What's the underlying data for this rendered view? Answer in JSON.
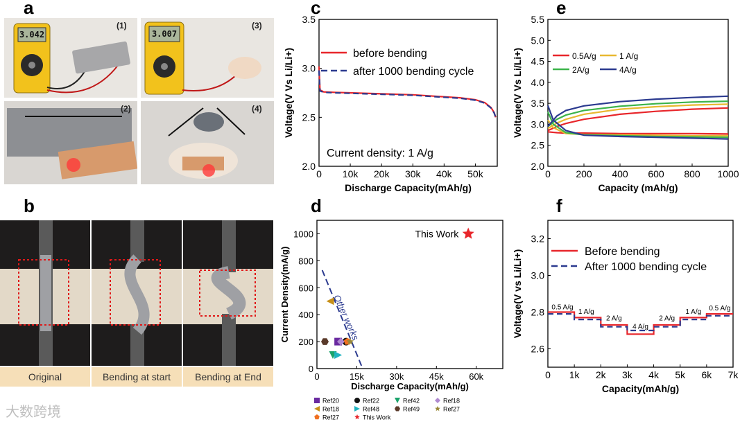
{
  "panels": {
    "a": "a",
    "b": "b",
    "c": "c",
    "d": "d",
    "e": "e",
    "f": "f"
  },
  "panel_a": {
    "sub_labels": [
      "(1)",
      "(2)",
      "(3)",
      "(4)"
    ],
    "meter_readings": [
      "3.042",
      "3.007"
    ]
  },
  "panel_b": {
    "captions": [
      "Original",
      "Bending at start",
      "Bending at End"
    ]
  },
  "watermark": "大数跨境",
  "chart_data": [
    {
      "id": "c",
      "type": "line",
      "xlabel": "Discharge Capacity(mAh/g)",
      "ylabel": "Voltage(V Vs Li/Li+)",
      "xlim": [
        0,
        57000
      ],
      "ylim": [
        2.0,
        3.5
      ],
      "xticks": [
        0,
        10000,
        20000,
        30000,
        40000,
        50000
      ],
      "xtick_labels": [
        "0",
        "10k",
        "20k",
        "30k",
        "40k",
        "50k"
      ],
      "yticks": [
        2.0,
        2.5,
        3.0,
        3.5
      ],
      "ytick_labels": [
        "2.0",
        "2.5",
        "3.0",
        "3.5"
      ],
      "legend": [
        "before bending",
        "after 1000 bending cycle"
      ],
      "annotation": "Current density: 1 A/g",
      "series": [
        {
          "name": "before bending",
          "color": "#e8262b",
          "dash": false,
          "x": [
            0,
            300,
            1500,
            5000,
            10000,
            20000,
            30000,
            40000,
            45000,
            50000,
            53000,
            55000,
            56000,
            56500
          ],
          "y": [
            3.02,
            2.78,
            2.76,
            2.755,
            2.75,
            2.74,
            2.73,
            2.71,
            2.7,
            2.68,
            2.65,
            2.6,
            2.55,
            2.5
          ]
        },
        {
          "name": "after 1000 bending cycle",
          "color": "#2b3a8f",
          "dash": true,
          "x": [
            0,
            300,
            1500,
            5000,
            10000,
            20000,
            30000,
            40000,
            45000,
            50000,
            53000,
            55000,
            56000,
            56500
          ],
          "y": [
            2.98,
            2.77,
            2.755,
            2.75,
            2.745,
            2.735,
            2.725,
            2.705,
            2.695,
            2.675,
            2.645,
            2.595,
            2.545,
            2.5
          ]
        }
      ]
    },
    {
      "id": "d",
      "type": "scatter",
      "xlabel": "Discharge Capacity(mAh/g)",
      "ylabel": "Current Density(mA/g)",
      "xlim": [
        0,
        70000
      ],
      "ylim": [
        0,
        1100
      ],
      "xticks": [
        0,
        15000,
        30000,
        45000,
        60000
      ],
      "xtick_labels": [
        "0",
        "15k",
        "30k",
        "45k",
        "60k"
      ],
      "yticks": [
        0,
        200,
        400,
        600,
        800,
        1000
      ],
      "ytick_labels": [
        "0",
        "200",
        "400",
        "600",
        "800",
        "1000"
      ],
      "annotation": "Other works",
      "highlight_label": "This Work",
      "points": [
        {
          "name": "Ref20",
          "x": 8000,
          "y": 200,
          "color": "#6a2aa0",
          "shape": "square"
        },
        {
          "name": "Ref22",
          "x": 11000,
          "y": 200,
          "color": "#111111",
          "shape": "circle"
        },
        {
          "name": "Ref42",
          "x": 6000,
          "y": 100,
          "color": "#1aa36b",
          "shape": "tri-down"
        },
        {
          "name": "Ref18",
          "x": 9000,
          "y": 200,
          "color": "#b08ad0",
          "shape": "diamond"
        },
        {
          "name": "Ref18",
          "x": 5000,
          "y": 500,
          "color": "#c79018",
          "shape": "tri-left"
        },
        {
          "name": "Ref48",
          "x": 8000,
          "y": 100,
          "color": "#1fb3c0",
          "shape": "tri-right"
        },
        {
          "name": "Ref49",
          "x": 3000,
          "y": 200,
          "color": "#5a3a2a",
          "shape": "hexagon"
        },
        {
          "name": "Ref27",
          "x": 11500,
          "y": 200,
          "color": "#f07020",
          "shape": "pentagon"
        },
        {
          "name": "Ref27",
          "x": 12500,
          "y": 200,
          "color": "#9a8a3a",
          "shape": "star"
        },
        {
          "name": "This Work",
          "x": 57000,
          "y": 1000,
          "color": "#e8262b",
          "shape": "star"
        }
      ],
      "legend_entries": [
        {
          "name": "Ref20",
          "color": "#6a2aa0",
          "shape": "square"
        },
        {
          "name": "Ref22",
          "color": "#111111",
          "shape": "circle"
        },
        {
          "name": "Ref42",
          "color": "#1aa36b",
          "shape": "tri-down"
        },
        {
          "name": "Ref18",
          "color": "#b08ad0",
          "shape": "diamond"
        },
        {
          "name": "Ref18",
          "color": "#c79018",
          "shape": "tri-left"
        },
        {
          "name": "Ref48",
          "color": "#1fb3c0",
          "shape": "tri-right"
        },
        {
          "name": "Ref49",
          "color": "#5a3a2a",
          "shape": "hexagon"
        },
        {
          "name": "Ref27",
          "color": "#9a8a3a",
          "shape": "star"
        },
        {
          "name": "Ref27",
          "color": "#f07020",
          "shape": "pentagon"
        },
        {
          "name": "This Work",
          "color": "#e8262b",
          "shape": "star"
        }
      ]
    },
    {
      "id": "e",
      "type": "line",
      "xlabel": "Capacity (mAh/g)",
      "ylabel": "Voltage(V Vs Li/Li+)",
      "xlim": [
        0,
        1000
      ],
      "ylim": [
        2.0,
        5.5
      ],
      "xticks": [
        0,
        200,
        400,
        600,
        800,
        1000
      ],
      "xtick_labels": [
        "0",
        "200",
        "400",
        "600",
        "800",
        "1000"
      ],
      "yticks": [
        2.0,
        2.5,
        3.0,
        3.5,
        4.0,
        4.5,
        5.0,
        5.5
      ],
      "ytick_labels": [
        "2.0",
        "2.5",
        "3.0",
        "3.5",
        "4.0",
        "4.5",
        "5.0",
        "5.5"
      ],
      "legend": [
        "0.5A/g",
        "1 A/g",
        "2A/g",
        "4A/g"
      ],
      "series": [
        {
          "name": "0.5A/g",
          "color": "#e8262b",
          "charge": {
            "x": [
              0,
              50,
              100,
              200,
              400,
              600,
              800,
              1000
            ],
            "y": [
              2.85,
              2.95,
              3.02,
              3.12,
              3.24,
              3.31,
              3.36,
              3.39
            ]
          },
          "discharge": {
            "x": [
              0,
              50,
              100,
              200,
              400,
              600,
              800,
              1000
            ],
            "y": [
              2.82,
              2.8,
              2.79,
              2.79,
              2.78,
              2.78,
              2.78,
              2.77
            ]
          }
        },
        {
          "name": "1 A/g",
          "color": "#e8b830",
          "charge": {
            "x": [
              0,
              50,
              100,
              200,
              400,
              600,
              800,
              1000
            ],
            "y": [
              2.9,
              3.03,
              3.12,
              3.24,
              3.36,
              3.42,
              3.46,
              3.48
            ]
          },
          "discharge": {
            "x": [
              0,
              30,
              100,
              200,
              400,
              600,
              800,
              1000
            ],
            "y": [
              3.1,
              2.92,
              2.78,
              2.76,
              2.75,
              2.74,
              2.73,
              2.73
            ]
          }
        },
        {
          "name": "2A/g",
          "color": "#3cb44a",
          "charge": {
            "x": [
              0,
              50,
              100,
              200,
              400,
              600,
              800,
              1000
            ],
            "y": [
              2.95,
              3.12,
              3.22,
              3.33,
              3.43,
              3.49,
              3.53,
              3.55
            ]
          },
          "discharge": {
            "x": [
              0,
              30,
              100,
              200,
              400,
              600,
              800,
              1000
            ],
            "y": [
              3.3,
              3.0,
              2.8,
              2.75,
              2.73,
              2.71,
              2.7,
              2.69
            ]
          }
        },
        {
          "name": "4A/g",
          "color": "#2b3a8f",
          "charge": {
            "x": [
              0,
              50,
              100,
              200,
              400,
              600,
              800,
              1000
            ],
            "y": [
              2.95,
              3.2,
              3.33,
              3.44,
              3.54,
              3.6,
              3.64,
              3.67
            ]
          },
          "discharge": {
            "x": [
              0,
              30,
              100,
              200,
              400,
              600,
              800,
              1000
            ],
            "y": [
              3.45,
              3.1,
              2.85,
              2.74,
              2.71,
              2.69,
              2.67,
              2.65
            ]
          }
        }
      ]
    },
    {
      "id": "f",
      "type": "line",
      "xlabel": "Capacity(mAh/g)",
      "ylabel": "Voltage(V vs Li/Li+)",
      "xlim": [
        0,
        7000
      ],
      "ylim": [
        2.5,
        3.3
      ],
      "xticks": [
        0,
        1000,
        2000,
        3000,
        4000,
        5000,
        6000,
        7000
      ],
      "xtick_labels": [
        "0",
        "1k",
        "2k",
        "3k",
        "4k",
        "5k",
        "6k",
        "7k"
      ],
      "yticks": [
        2.6,
        2.8,
        3.0,
        3.2
      ],
      "ytick_labels": [
        "2.6",
        "2.8",
        "3.0",
        "3.2"
      ],
      "legend": [
        "Before bending",
        "After 1000 bending cycle"
      ],
      "rate_labels": [
        {
          "text": "0.5 A/g",
          "x": 550,
          "y": 2.815
        },
        {
          "text": "1 A/g",
          "x": 1450,
          "y": 2.79
        },
        {
          "text": "2 A/g",
          "x": 2500,
          "y": 2.755
        },
        {
          "text": "4 A/g",
          "x": 3500,
          "y": 2.71
        },
        {
          "text": "2 A/g",
          "x": 4500,
          "y": 2.755
        },
        {
          "text": "1 A/g",
          "x": 5500,
          "y": 2.79
        },
        {
          "text": "0.5 A/g",
          "x": 6500,
          "y": 2.81
        }
      ],
      "series": [
        {
          "name": "Before bending",
          "color": "#e8262b",
          "dash": false,
          "x": [
            0,
            1000,
            1000,
            2000,
            2000,
            3000,
            3000,
            4000,
            4000,
            5000,
            5000,
            6000,
            6000,
            7000
          ],
          "y": [
            2.8,
            2.8,
            2.77,
            2.77,
            2.73,
            2.73,
            2.68,
            2.68,
            2.73,
            2.73,
            2.77,
            2.77,
            2.79,
            2.79
          ]
        },
        {
          "name": "After 1000 bending cycle",
          "color": "#2b3a8f",
          "dash": true,
          "x": [
            0,
            1000,
            1000,
            2000,
            2000,
            3000,
            3000,
            4000,
            4000,
            5000,
            5000,
            6000,
            6000,
            7000
          ],
          "y": [
            2.79,
            2.79,
            2.76,
            2.76,
            2.72,
            2.72,
            2.7,
            2.7,
            2.72,
            2.72,
            2.76,
            2.76,
            2.78,
            2.78
          ]
        }
      ]
    }
  ]
}
